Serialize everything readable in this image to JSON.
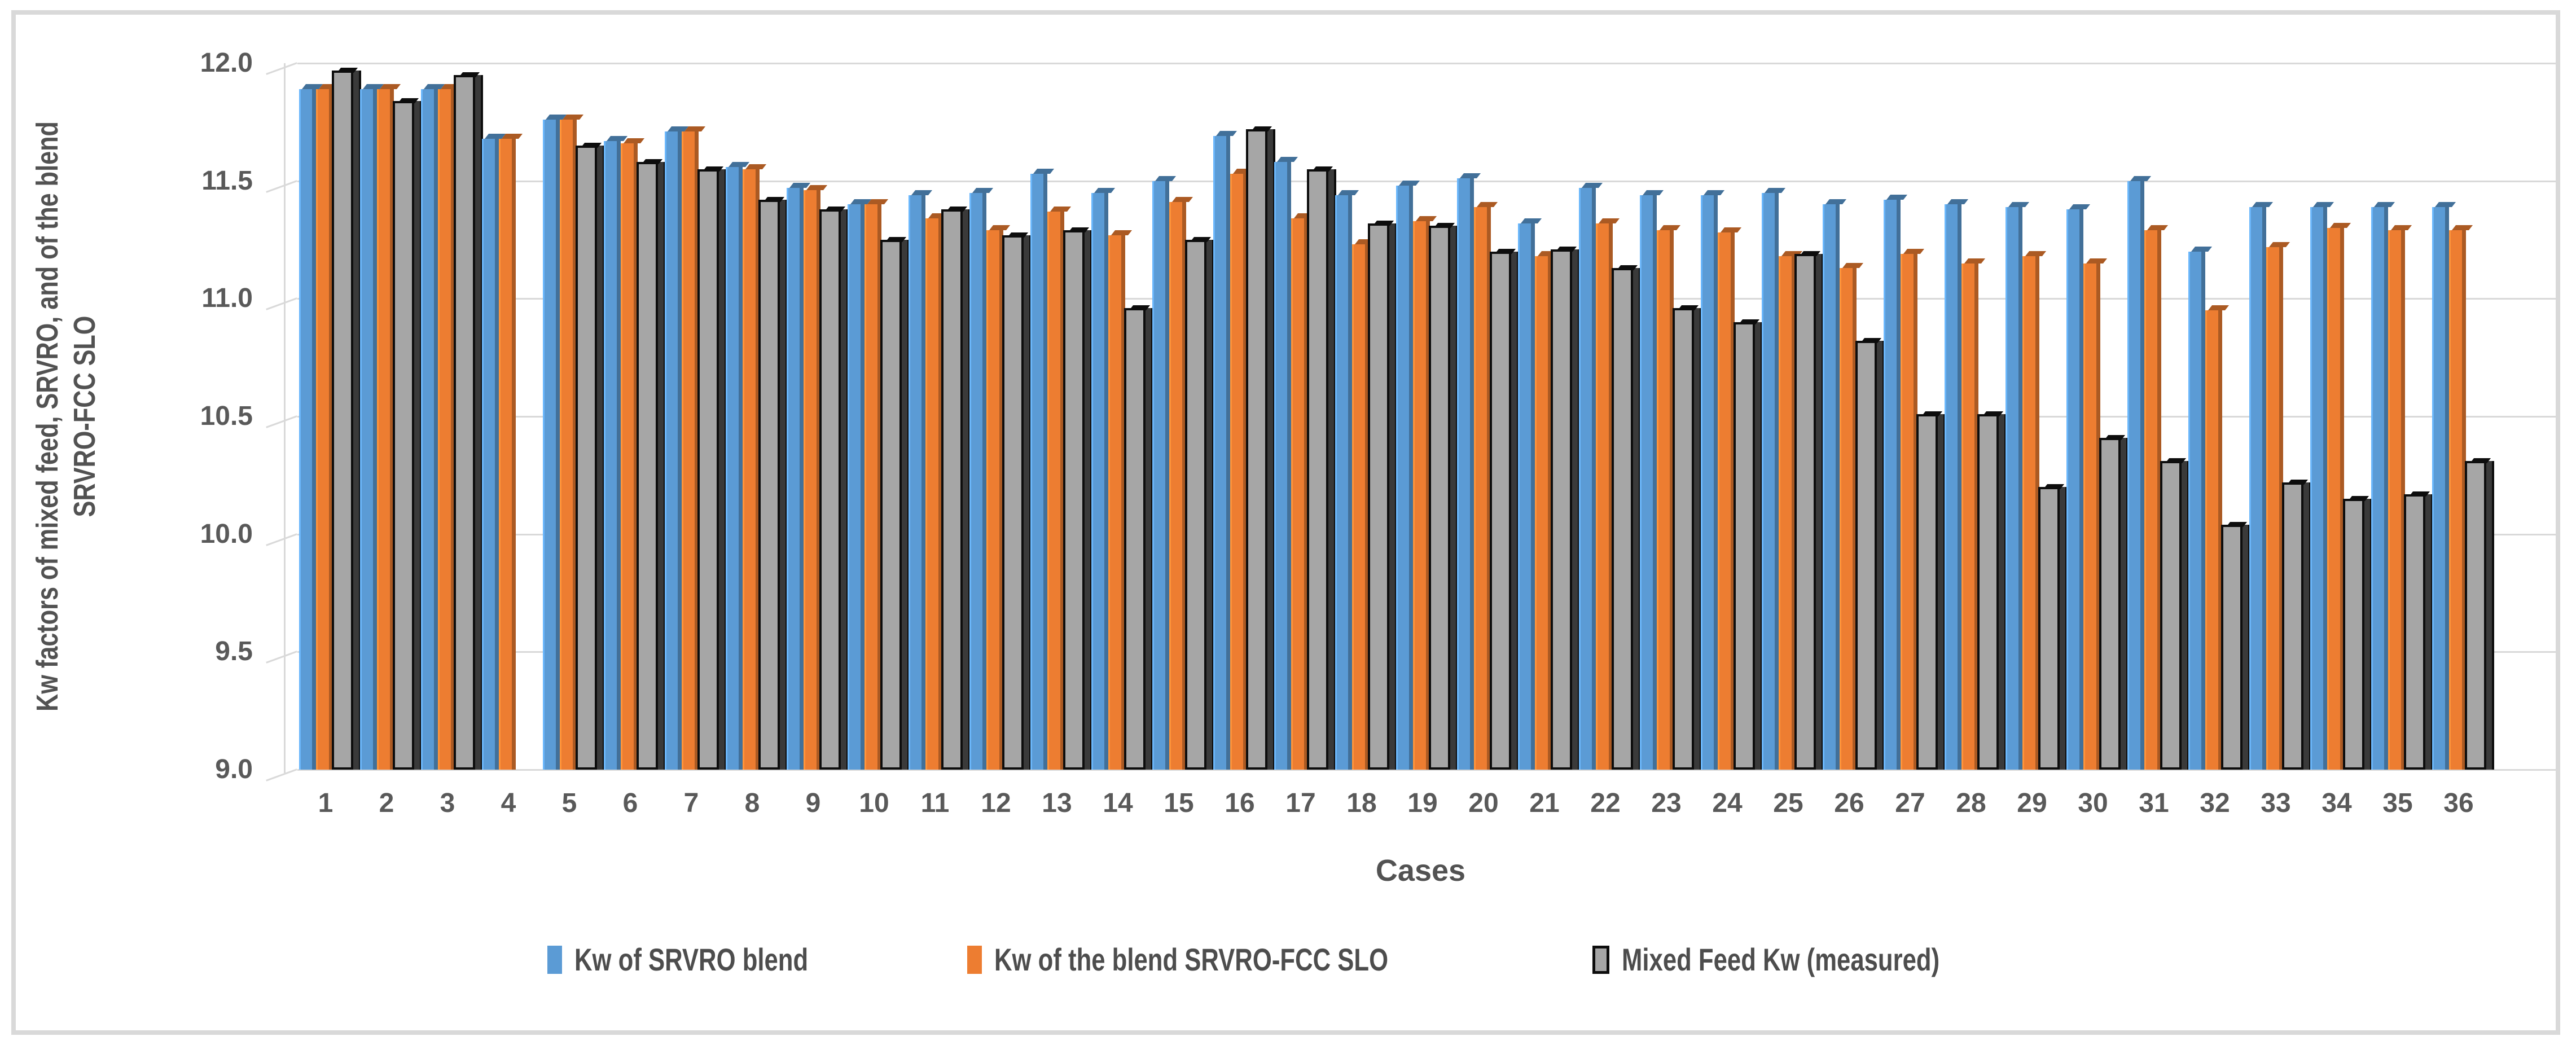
{
  "figure": {
    "background": "#FFFFFF",
    "frame_color": "#D9D9D9"
  },
  "colors": {
    "series_blue": "#5B9BD5",
    "series_orange": "#ED7D31",
    "series_gray_fill": "#A6A6A6",
    "series_gray_border": "#0D0D0D",
    "gridline": "#D9D9D9",
    "tick_text": "#595959",
    "axis_title_text": "#525252"
  },
  "chart_data": {
    "type": "bar",
    "title": "",
    "xlabel": "Cases",
    "ylabel_line1": "Kw factors of mixed feed, SRVRO, and of the blend",
    "ylabel_line2": "SRVRO-FCC SLO",
    "ylim": [
      9.0,
      12.0
    ],
    "ytick_step": 0.5,
    "yticks": [
      "12.0",
      "11.5",
      "11.0",
      "10.5",
      "10.0",
      "9.5",
      "9.0"
    ],
    "grid": true,
    "legend_position": "bottom-center",
    "categories": [
      "1",
      "2",
      "3",
      "4",
      "5",
      "6",
      "7",
      "8",
      "9",
      "10",
      "11",
      "12",
      "13",
      "14",
      "15",
      "16",
      "17",
      "18",
      "19",
      "20",
      "21",
      "22",
      "23",
      "24",
      "25",
      "26",
      "27",
      "28",
      "29",
      "30",
      "31",
      "32",
      "33",
      "34",
      "35",
      "36"
    ],
    "series": [
      {
        "name": "Kw of SRVRO blend",
        "color": "#5B9BD5",
        "values": [
          11.89,
          11.89,
          11.89,
          11.68,
          11.76,
          11.67,
          11.71,
          11.56,
          11.47,
          11.4,
          11.44,
          11.45,
          11.53,
          11.45,
          11.5,
          11.69,
          11.58,
          11.44,
          11.48,
          11.51,
          11.32,
          11.47,
          11.44,
          11.44,
          11.45,
          11.4,
          11.42,
          11.4,
          11.39,
          11.38,
          11.5,
          11.2,
          11.39,
          11.39,
          11.39,
          11.39
        ]
      },
      {
        "name": "Kw of the blend SRVRO-FCC SLO",
        "color": "#ED7D31",
        "values": [
          11.89,
          11.89,
          11.89,
          11.68,
          11.76,
          11.66,
          11.71,
          11.55,
          11.46,
          11.4,
          11.34,
          11.29,
          11.37,
          11.27,
          11.41,
          11.53,
          11.34,
          11.23,
          11.33,
          11.39,
          11.18,
          11.32,
          11.29,
          11.28,
          11.18,
          11.13,
          11.19,
          11.15,
          11.18,
          11.15,
          11.29,
          10.95,
          11.22,
          11.3,
          11.29,
          11.29
        ]
      },
      {
        "name": "Mixed Feed Kw (measured)",
        "color": "#A6A6A6",
        "border": "#0D0D0D",
        "values": [
          11.97,
          11.84,
          11.95,
          null,
          11.65,
          11.58,
          11.55,
          11.42,
          11.38,
          11.25,
          11.38,
          11.27,
          11.29,
          10.96,
          11.25,
          11.72,
          11.55,
          11.32,
          11.31,
          11.2,
          11.21,
          11.13,
          10.96,
          10.9,
          11.19,
          10.82,
          10.51,
          10.51,
          10.2,
          10.41,
          10.31,
          10.04,
          10.22,
          10.15,
          10.17,
          10.31
        ]
      }
    ]
  }
}
